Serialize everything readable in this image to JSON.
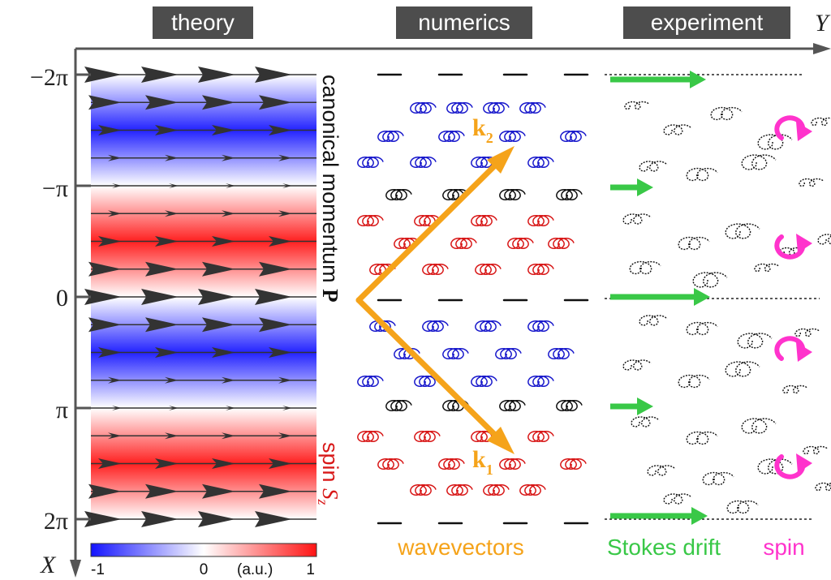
{
  "headers": {
    "theory": "theory",
    "numerics": "numerics",
    "experiment": "experiment"
  },
  "axes": {
    "y_axis_label": "Y",
    "x_axis_label": "X",
    "ticks": [
      "−2π",
      "−π",
      "0",
      "π",
      "2π"
    ]
  },
  "theory": {
    "momentum_label": "canonical momentum ",
    "momentum_symbol": "P",
    "spin_label": "spin ",
    "spin_symbol": "S",
    "spin_subscript": "z"
  },
  "colorbar": {
    "min_label": "-1",
    "mid_label": "0",
    "unit_label": "(a.u.)",
    "max_label": "1",
    "colors": {
      "negative": "#1414ff",
      "zero": "#ffffff",
      "positive": "#ff1414"
    }
  },
  "numerics": {
    "k1": "k",
    "k1_sub": "1",
    "k2": "k",
    "k2_sub": "2",
    "wavevectors_label": "wavevectors"
  },
  "experiment": {
    "stokes_label": "Stokes drift",
    "spin_label": "spin"
  },
  "colors": {
    "header_bg": "#4d4d4d",
    "axis": "#555555",
    "arrow": "#333333",
    "wavevector": "#f5a31a",
    "stokes": "#39c847",
    "spin": "#ff33cc",
    "orbit_blue": "#1a1acc",
    "orbit_red": "#d81818",
    "orbit_black": "#111111"
  }
}
